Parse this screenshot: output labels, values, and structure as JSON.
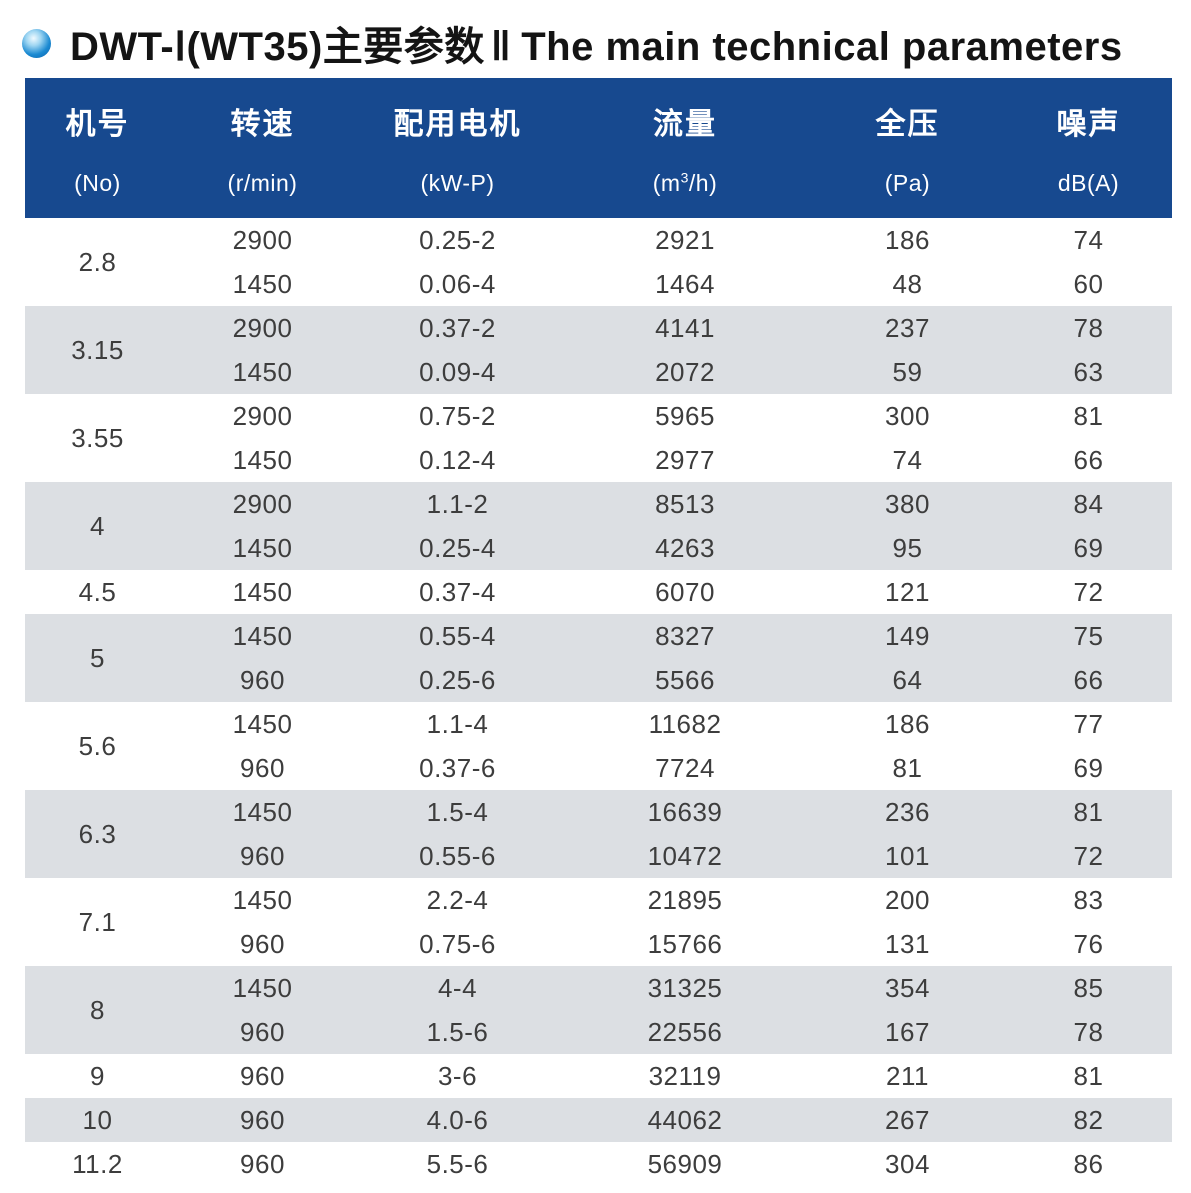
{
  "title": {
    "zh": "DWT-Ⅰ(WT35)主要参数",
    "divider": "‖",
    "en": "The main technical parameters"
  },
  "table": {
    "columns": [
      {
        "label_zh": "机号",
        "label_sub": "(No)"
      },
      {
        "label_zh": "转速",
        "label_sub": "(r/min)"
      },
      {
        "label_zh": "配用电机",
        "label_sub": "(kW-P)"
      },
      {
        "label_zh": "流量",
        "label_sub": "(m³/h)"
      },
      {
        "label_zh": "全压",
        "label_sub": "(Pa)"
      },
      {
        "label_zh": "噪声",
        "label_sub": "dB(A)"
      }
    ],
    "groups": [
      {
        "no": "2.8",
        "rows": [
          [
            "2900",
            "0.25-2",
            "2921",
            "186",
            "74"
          ],
          [
            "1450",
            "0.06-4",
            "1464",
            "48",
            "60"
          ]
        ]
      },
      {
        "no": "3.15",
        "rows": [
          [
            "2900",
            "0.37-2",
            "4141",
            "237",
            "78"
          ],
          [
            "1450",
            "0.09-4",
            "2072",
            "59",
            "63"
          ]
        ]
      },
      {
        "no": "3.55",
        "rows": [
          [
            "2900",
            "0.75-2",
            "5965",
            "300",
            "81"
          ],
          [
            "1450",
            "0.12-4",
            "2977",
            "74",
            "66"
          ]
        ]
      },
      {
        "no": "4",
        "rows": [
          [
            "2900",
            "1.1-2",
            "8513",
            "380",
            "84"
          ],
          [
            "1450",
            "0.25-4",
            "4263",
            "95",
            "69"
          ]
        ]
      },
      {
        "no": "4.5",
        "rows": [
          [
            "1450",
            "0.37-4",
            "6070",
            "121",
            "72"
          ]
        ]
      },
      {
        "no": "5",
        "rows": [
          [
            "1450",
            "0.55-4",
            "8327",
            "149",
            "75"
          ],
          [
            "960",
            "0.25-6",
            "5566",
            "64",
            "66"
          ]
        ]
      },
      {
        "no": "5.6",
        "rows": [
          [
            "1450",
            "1.1-4",
            "11682",
            "186",
            "77"
          ],
          [
            "960",
            "0.37-6",
            "7724",
            "81",
            "69"
          ]
        ]
      },
      {
        "no": "6.3",
        "rows": [
          [
            "1450",
            "1.5-4",
            "16639",
            "236",
            "81"
          ],
          [
            "960",
            "0.55-6",
            "10472",
            "101",
            "72"
          ]
        ]
      },
      {
        "no": "7.1",
        "rows": [
          [
            "1450",
            "2.2-4",
            "21895",
            "200",
            "83"
          ],
          [
            "960",
            "0.75-6",
            "15766",
            "131",
            "76"
          ]
        ]
      },
      {
        "no": "8",
        "rows": [
          [
            "1450",
            "4-4",
            "31325",
            "354",
            "85"
          ],
          [
            "960",
            "1.5-6",
            "22556",
            "167",
            "78"
          ]
        ]
      },
      {
        "no": "9",
        "rows": [
          [
            "960",
            "3-6",
            "32119",
            "211",
            "81"
          ]
        ]
      },
      {
        "no": "10",
        "rows": [
          [
            "960",
            "4.0-6",
            "44062",
            "267",
            "82"
          ]
        ]
      },
      {
        "no": "11.2",
        "rows": [
          [
            "960",
            "5.5-6",
            "56909",
            "304",
            "86"
          ]
        ]
      }
    ]
  },
  "colors": {
    "header_bg": "#17498f",
    "header_text": "#ffffff",
    "row_shaded_bg": "#dcdfe3",
    "row_plain_bg": "#ffffff",
    "body_text": "#3d3d3d",
    "bullet_blue": "#1b8ad2"
  }
}
